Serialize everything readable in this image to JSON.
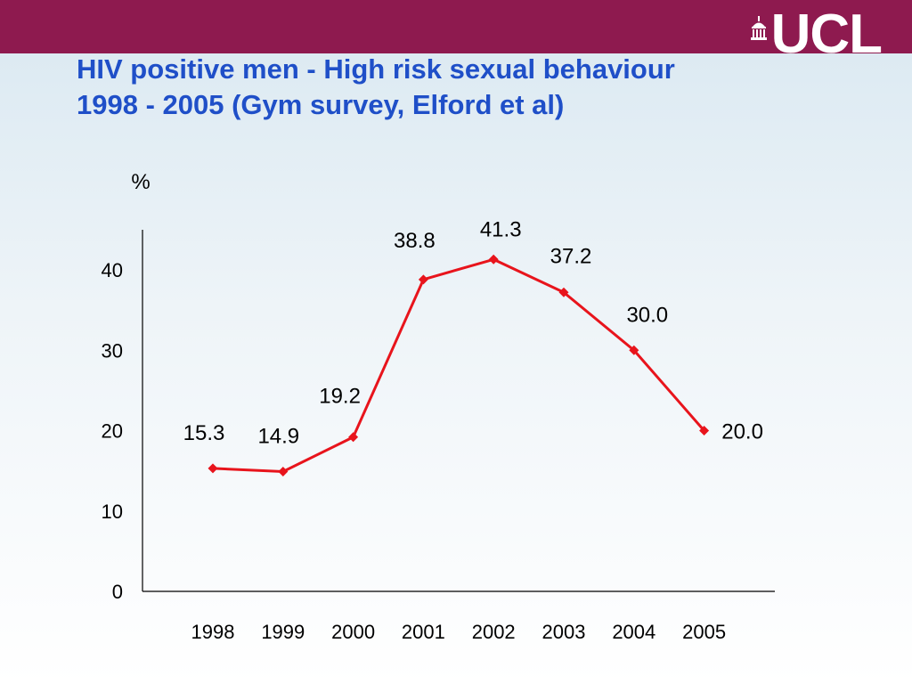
{
  "header": {
    "logo_text": "UCL",
    "title_line1": "HIV positive men - High risk sexual behaviour",
    "title_line2": "1998 - 2005 (Gym survey, Elford et al)"
  },
  "colors": {
    "band": "#8e1a4f",
    "title": "#1f4fc8",
    "series": "#e8141c"
  },
  "chart_data": {
    "type": "line",
    "ylabel": "%",
    "xlabel": "",
    "ylim": [
      0,
      45
    ],
    "yticks": [
      0,
      10,
      20,
      30,
      40
    ],
    "categories": [
      "1998",
      "1999",
      "2000",
      "2001",
      "2002",
      "2003",
      "2004",
      "2005"
    ],
    "series": [
      {
        "values": [
          15.3,
          14.9,
          19.2,
          38.8,
          41.3,
          37.2,
          30.0,
          20.0
        ],
        "labels": [
          "15.3",
          "14.9",
          "19.2",
          "38.8",
          "41.3",
          "37.2",
          "30.0",
          "20.0"
        ]
      }
    ],
    "grid": false,
    "legend": "none",
    "marker": "diamond"
  }
}
